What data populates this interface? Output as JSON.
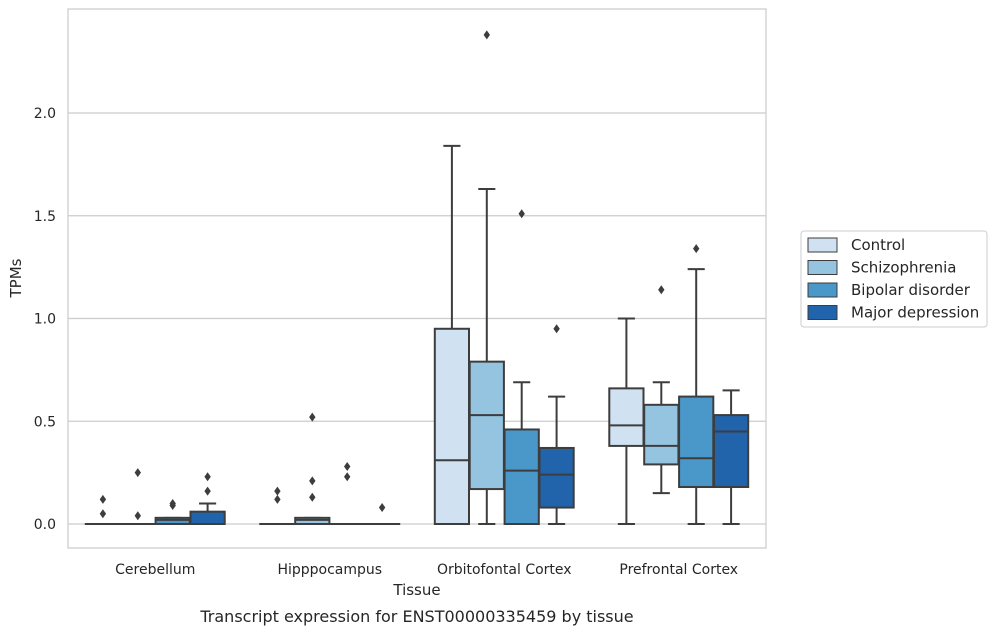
{
  "chart_data": {
    "type": "box",
    "xlabel": "Tissue",
    "ylabel": "TPMs",
    "caption": "Transcript expression for ENST00000335459 by tissue",
    "ylim": [
      -0.12,
      2.5
    ],
    "yticks": [
      0.0,
      0.5,
      1.0,
      1.5,
      2.0
    ],
    "ytick_labels": [
      "0.0",
      "0.5",
      "1.0",
      "1.5",
      "2.0"
    ],
    "grid": "horizontal",
    "legend_position": "right",
    "categories": [
      "Cerebellum",
      "Hipppocampus",
      "Orbitofontal Cortex",
      "Prefrontal Cortex"
    ],
    "series": [
      {
        "name": "Control",
        "color": "#d0e1f2",
        "boxes": [
          {
            "q1": 0.0,
            "median": 0.0,
            "q3": 0.0,
            "whislo": 0.0,
            "whishi": 0.0,
            "fliers": [
              0.05,
              0.12
            ]
          },
          {
            "q1": 0.0,
            "median": 0.0,
            "q3": 0.0,
            "whislo": 0.0,
            "whishi": 0.0,
            "fliers": [
              0.12,
              0.16
            ]
          },
          {
            "q1": 0.0,
            "median": 0.31,
            "q3": 0.95,
            "whislo": 0.0,
            "whishi": 1.84,
            "fliers": []
          },
          {
            "q1": 0.38,
            "median": 0.48,
            "q3": 0.66,
            "whislo": 0.0,
            "whishi": 1.0,
            "fliers": []
          }
        ]
      },
      {
        "name": "Schizophrenia",
        "color": "#94c4df",
        "boxes": [
          {
            "q1": 0.0,
            "median": 0.0,
            "q3": 0.0,
            "whislo": 0.0,
            "whishi": 0.0,
            "fliers": [
              0.04,
              0.25
            ]
          },
          {
            "q1": 0.0,
            "median": 0.02,
            "q3": 0.03,
            "whislo": 0.0,
            "whishi": 0.03,
            "fliers": [
              0.13,
              0.21,
              0.52
            ]
          },
          {
            "q1": 0.17,
            "median": 0.53,
            "q3": 0.79,
            "whislo": 0.0,
            "whishi": 1.63,
            "fliers": [
              2.38
            ]
          },
          {
            "q1": 0.29,
            "median": 0.38,
            "q3": 0.58,
            "whislo": 0.15,
            "whishi": 0.69,
            "fliers": [
              1.14
            ]
          }
        ]
      },
      {
        "name": "Bipolar disorder",
        "color": "#4a98c9",
        "boxes": [
          {
            "q1": 0.0,
            "median": 0.02,
            "q3": 0.03,
            "whislo": 0.0,
            "whishi": 0.03,
            "fliers": [
              0.09,
              0.1
            ]
          },
          {
            "q1": 0.0,
            "median": 0.0,
            "q3": 0.0,
            "whislo": 0.0,
            "whishi": 0.0,
            "fliers": [
              0.23,
              0.28
            ]
          },
          {
            "q1": 0.0,
            "median": 0.26,
            "q3": 0.46,
            "whislo": 0.0,
            "whishi": 0.69,
            "fliers": [
              1.51
            ]
          },
          {
            "q1": 0.18,
            "median": 0.32,
            "q3": 0.62,
            "whislo": 0.0,
            "whishi": 1.24,
            "fliers": [
              1.34
            ]
          }
        ]
      },
      {
        "name": "Major depression",
        "color": "#2164ab",
        "boxes": [
          {
            "q1": 0.0,
            "median": 0.0,
            "q3": 0.06,
            "whislo": 0.0,
            "whishi": 0.1,
            "fliers": [
              0.16,
              0.23
            ]
          },
          {
            "q1": 0.0,
            "median": 0.0,
            "q3": 0.0,
            "whislo": 0.0,
            "whishi": 0.0,
            "fliers": [
              0.08
            ]
          },
          {
            "q1": 0.08,
            "median": 0.24,
            "q3": 0.37,
            "whislo": 0.0,
            "whishi": 0.62,
            "fliers": [
              0.95
            ]
          },
          {
            "q1": 0.18,
            "median": 0.45,
            "q3": 0.53,
            "whislo": 0.0,
            "whishi": 0.65,
            "fliers": []
          }
        ]
      }
    ]
  },
  "colors": {
    "line": "#3d3d3d",
    "grid": "#cccccc",
    "frame": "#cccccc"
  }
}
